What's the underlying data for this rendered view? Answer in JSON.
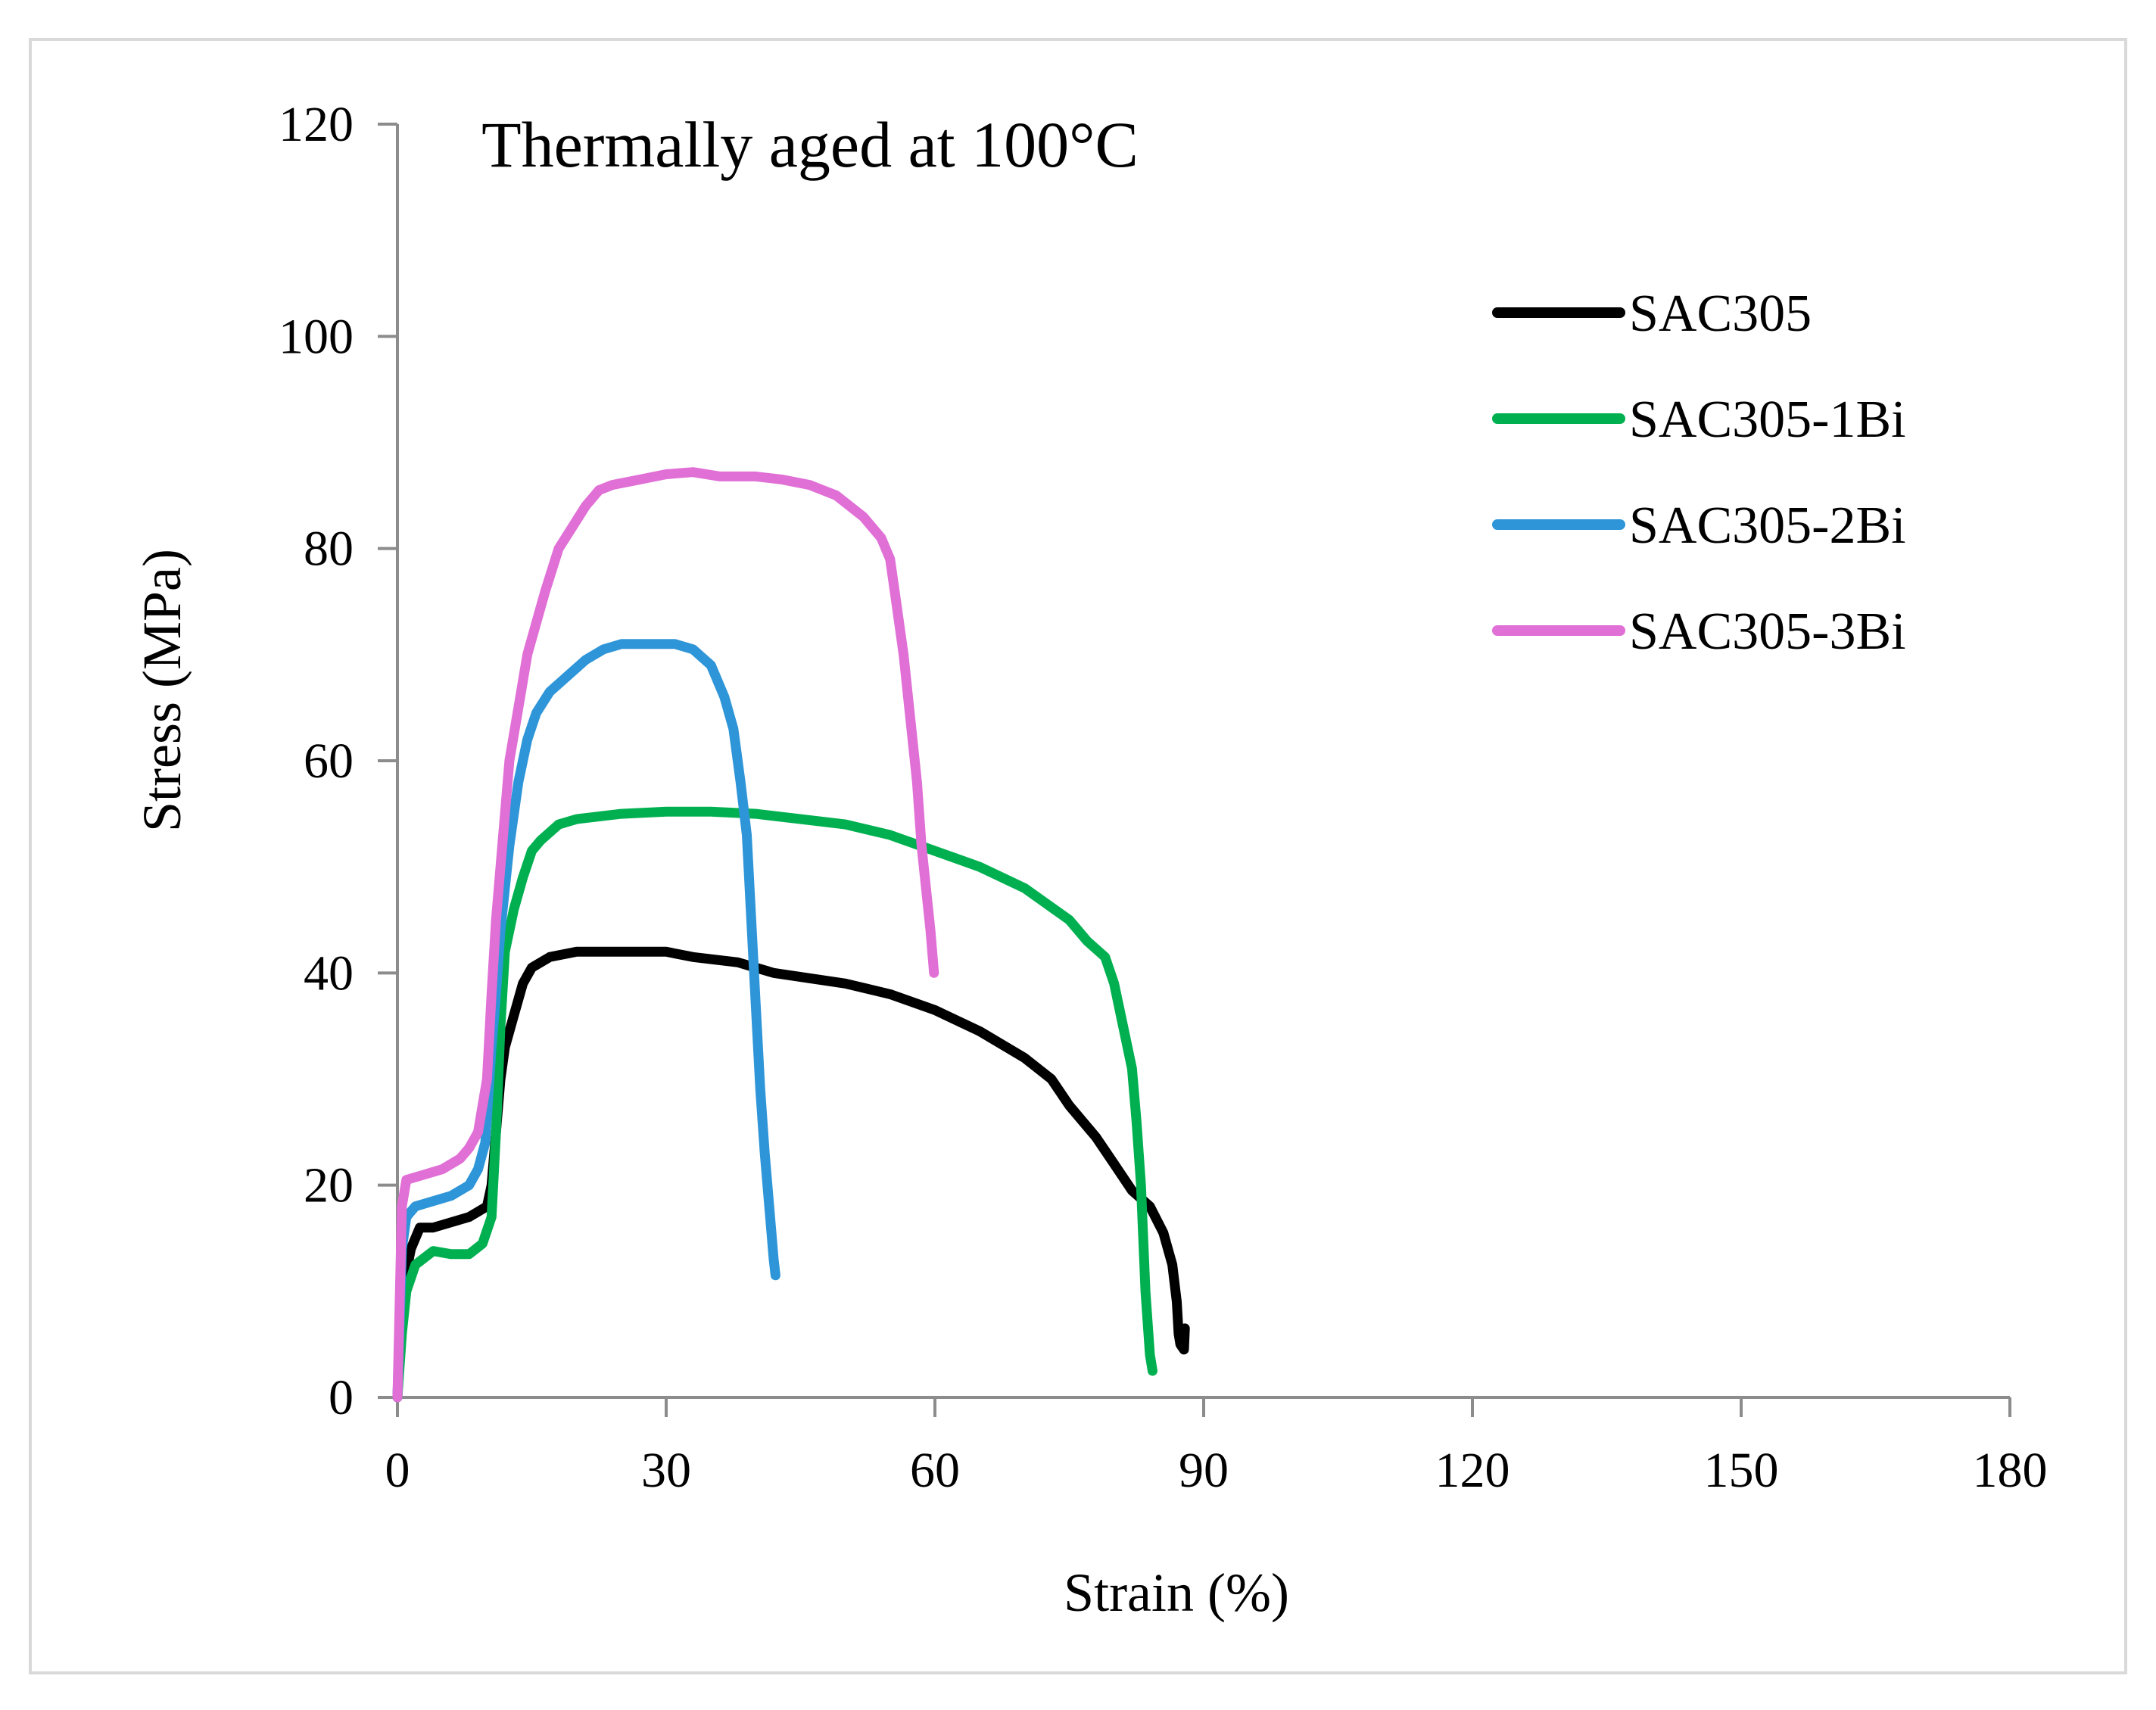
{
  "chart_data": {
    "type": "line",
    "title": "Thermally aged at 100°C",
    "xlabel": "Strain (%)",
    "ylabel": "Stress (MPa)",
    "xlim": [
      0,
      180
    ],
    "ylim": [
      0,
      120
    ],
    "xticks": [
      "0",
      "30",
      "60",
      "90",
      "120",
      "150",
      "180"
    ],
    "yticks": [
      "0",
      "20",
      "40",
      "60",
      "80",
      "100",
      "120"
    ],
    "grid": false,
    "legend_position": "right",
    "series": [
      {
        "name": "SAC305",
        "color": "#000000",
        "points": [
          [
            0,
            0
          ],
          [
            0.3,
            6
          ],
          [
            0.8,
            11
          ],
          [
            1.5,
            14
          ],
          [
            2.5,
            16
          ],
          [
            4,
            16
          ],
          [
            6,
            16.5
          ],
          [
            8,
            17
          ],
          [
            9,
            17.5
          ],
          [
            10,
            18
          ],
          [
            10.5,
            20
          ],
          [
            11,
            25
          ],
          [
            11.5,
            30
          ],
          [
            12,
            33
          ],
          [
            13,
            36
          ],
          [
            14,
            39
          ],
          [
            15,
            40.5
          ],
          [
            17,
            41.5
          ],
          [
            20,
            42
          ],
          [
            25,
            42
          ],
          [
            30,
            42
          ],
          [
            33,
            41.5
          ],
          [
            38,
            41
          ],
          [
            42,
            40
          ],
          [
            46,
            39.5
          ],
          [
            50,
            39
          ],
          [
            55,
            38
          ],
          [
            60,
            36.5
          ],
          [
            65,
            34.5
          ],
          [
            70,
            32
          ],
          [
            73,
            30
          ],
          [
            75,
            27.5
          ],
          [
            78,
            24.5
          ],
          [
            80,
            22
          ],
          [
            82,
            19.5
          ],
          [
            84,
            18
          ],
          [
            85.5,
            15.5
          ],
          [
            86.5,
            12.5
          ],
          [
            87,
            9
          ],
          [
            87.2,
            6
          ],
          [
            87.4,
            5
          ],
          [
            87.8,
            4.5
          ],
          [
            87.9,
            6.5
          ]
        ]
      },
      {
        "name": "SAC305-1Bi",
        "color": "#00b050",
        "points": [
          [
            0,
            0
          ],
          [
            0.5,
            6
          ],
          [
            1,
            10
          ],
          [
            2,
            12.5
          ],
          [
            4,
            13.8
          ],
          [
            6,
            13.5
          ],
          [
            8,
            13.5
          ],
          [
            9.5,
            14.5
          ],
          [
            10.5,
            17
          ],
          [
            11,
            25
          ],
          [
            11.5,
            35
          ],
          [
            12,
            42
          ],
          [
            13,
            46
          ],
          [
            14,
            49
          ],
          [
            15,
            51.5
          ],
          [
            16,
            52.5
          ],
          [
            18,
            54
          ],
          [
            20,
            54.5
          ],
          [
            25,
            55
          ],
          [
            30,
            55.2
          ],
          [
            35,
            55.2
          ],
          [
            40,
            55
          ],
          [
            45,
            54.5
          ],
          [
            50,
            54
          ],
          [
            55,
            53
          ],
          [
            60,
            51.5
          ],
          [
            65,
            50
          ],
          [
            70,
            48
          ],
          [
            75,
            45
          ],
          [
            77,
            43
          ],
          [
            79,
            41.5
          ],
          [
            80,
            39
          ],
          [
            81,
            35
          ],
          [
            82,
            31
          ],
          [
            82.5,
            26
          ],
          [
            83,
            20
          ],
          [
            83.5,
            10
          ],
          [
            84,
            4
          ],
          [
            84.3,
            2.5
          ]
        ]
      },
      {
        "name": "SAC305-2Bi",
        "color": "#2e95d8",
        "points": [
          [
            0,
            0
          ],
          [
            0.5,
            14
          ],
          [
            1,
            17
          ],
          [
            2,
            18
          ],
          [
            4,
            18.5
          ],
          [
            6,
            19
          ],
          [
            8,
            20
          ],
          [
            9,
            21.5
          ],
          [
            9.8,
            24
          ],
          [
            10.5,
            33
          ],
          [
            11,
            38
          ],
          [
            11.5,
            44
          ],
          [
            12.5,
            52
          ],
          [
            13.5,
            58
          ],
          [
            14.5,
            62
          ],
          [
            15.5,
            64.5
          ],
          [
            17,
            66.5
          ],
          [
            19,
            68
          ],
          [
            21,
            69.5
          ],
          [
            23,
            70.5
          ],
          [
            25,
            71
          ],
          [
            28,
            71
          ],
          [
            31,
            71
          ],
          [
            33,
            70.5
          ],
          [
            35,
            69
          ],
          [
            36.5,
            66
          ],
          [
            37.5,
            63
          ],
          [
            38.3,
            58
          ],
          [
            39,
            53
          ],
          [
            39.5,
            45
          ],
          [
            40,
            37
          ],
          [
            40.5,
            29
          ],
          [
            41,
            23
          ],
          [
            41.6,
            17
          ],
          [
            42,
            13
          ],
          [
            42.2,
            11.5
          ]
        ]
      },
      {
        "name": "SAC305-3Bi",
        "color": "#e06fd6",
        "points": [
          [
            0,
            0
          ],
          [
            0.5,
            18
          ],
          [
            1,
            20.5
          ],
          [
            3,
            21
          ],
          [
            5,
            21.5
          ],
          [
            7,
            22.5
          ],
          [
            8,
            23.5
          ],
          [
            9,
            25
          ],
          [
            10,
            30
          ],
          [
            10.5,
            38
          ],
          [
            11,
            45
          ],
          [
            11.5,
            50
          ],
          [
            12,
            55
          ],
          [
            12.5,
            60
          ],
          [
            13.5,
            65
          ],
          [
            14.5,
            70
          ],
          [
            15.5,
            73
          ],
          [
            16.5,
            76
          ],
          [
            18,
            80
          ],
          [
            19.5,
            82
          ],
          [
            21,
            84
          ],
          [
            22.5,
            85.5
          ],
          [
            24,
            86
          ],
          [
            27,
            86.5
          ],
          [
            30,
            87
          ],
          [
            33,
            87.2
          ],
          [
            36,
            86.8
          ],
          [
            40,
            86.8
          ],
          [
            43,
            86.5
          ],
          [
            46,
            86
          ],
          [
            49,
            85
          ],
          [
            52,
            83
          ],
          [
            54,
            81
          ],
          [
            55,
            79
          ],
          [
            55.5,
            76
          ],
          [
            56,
            73
          ],
          [
            56.5,
            70
          ],
          [
            57,
            66
          ],
          [
            57.5,
            62
          ],
          [
            58,
            58
          ],
          [
            58.5,
            52
          ],
          [
            59,
            48
          ],
          [
            59.5,
            44
          ],
          [
            59.9,
            40
          ]
        ]
      }
    ]
  }
}
